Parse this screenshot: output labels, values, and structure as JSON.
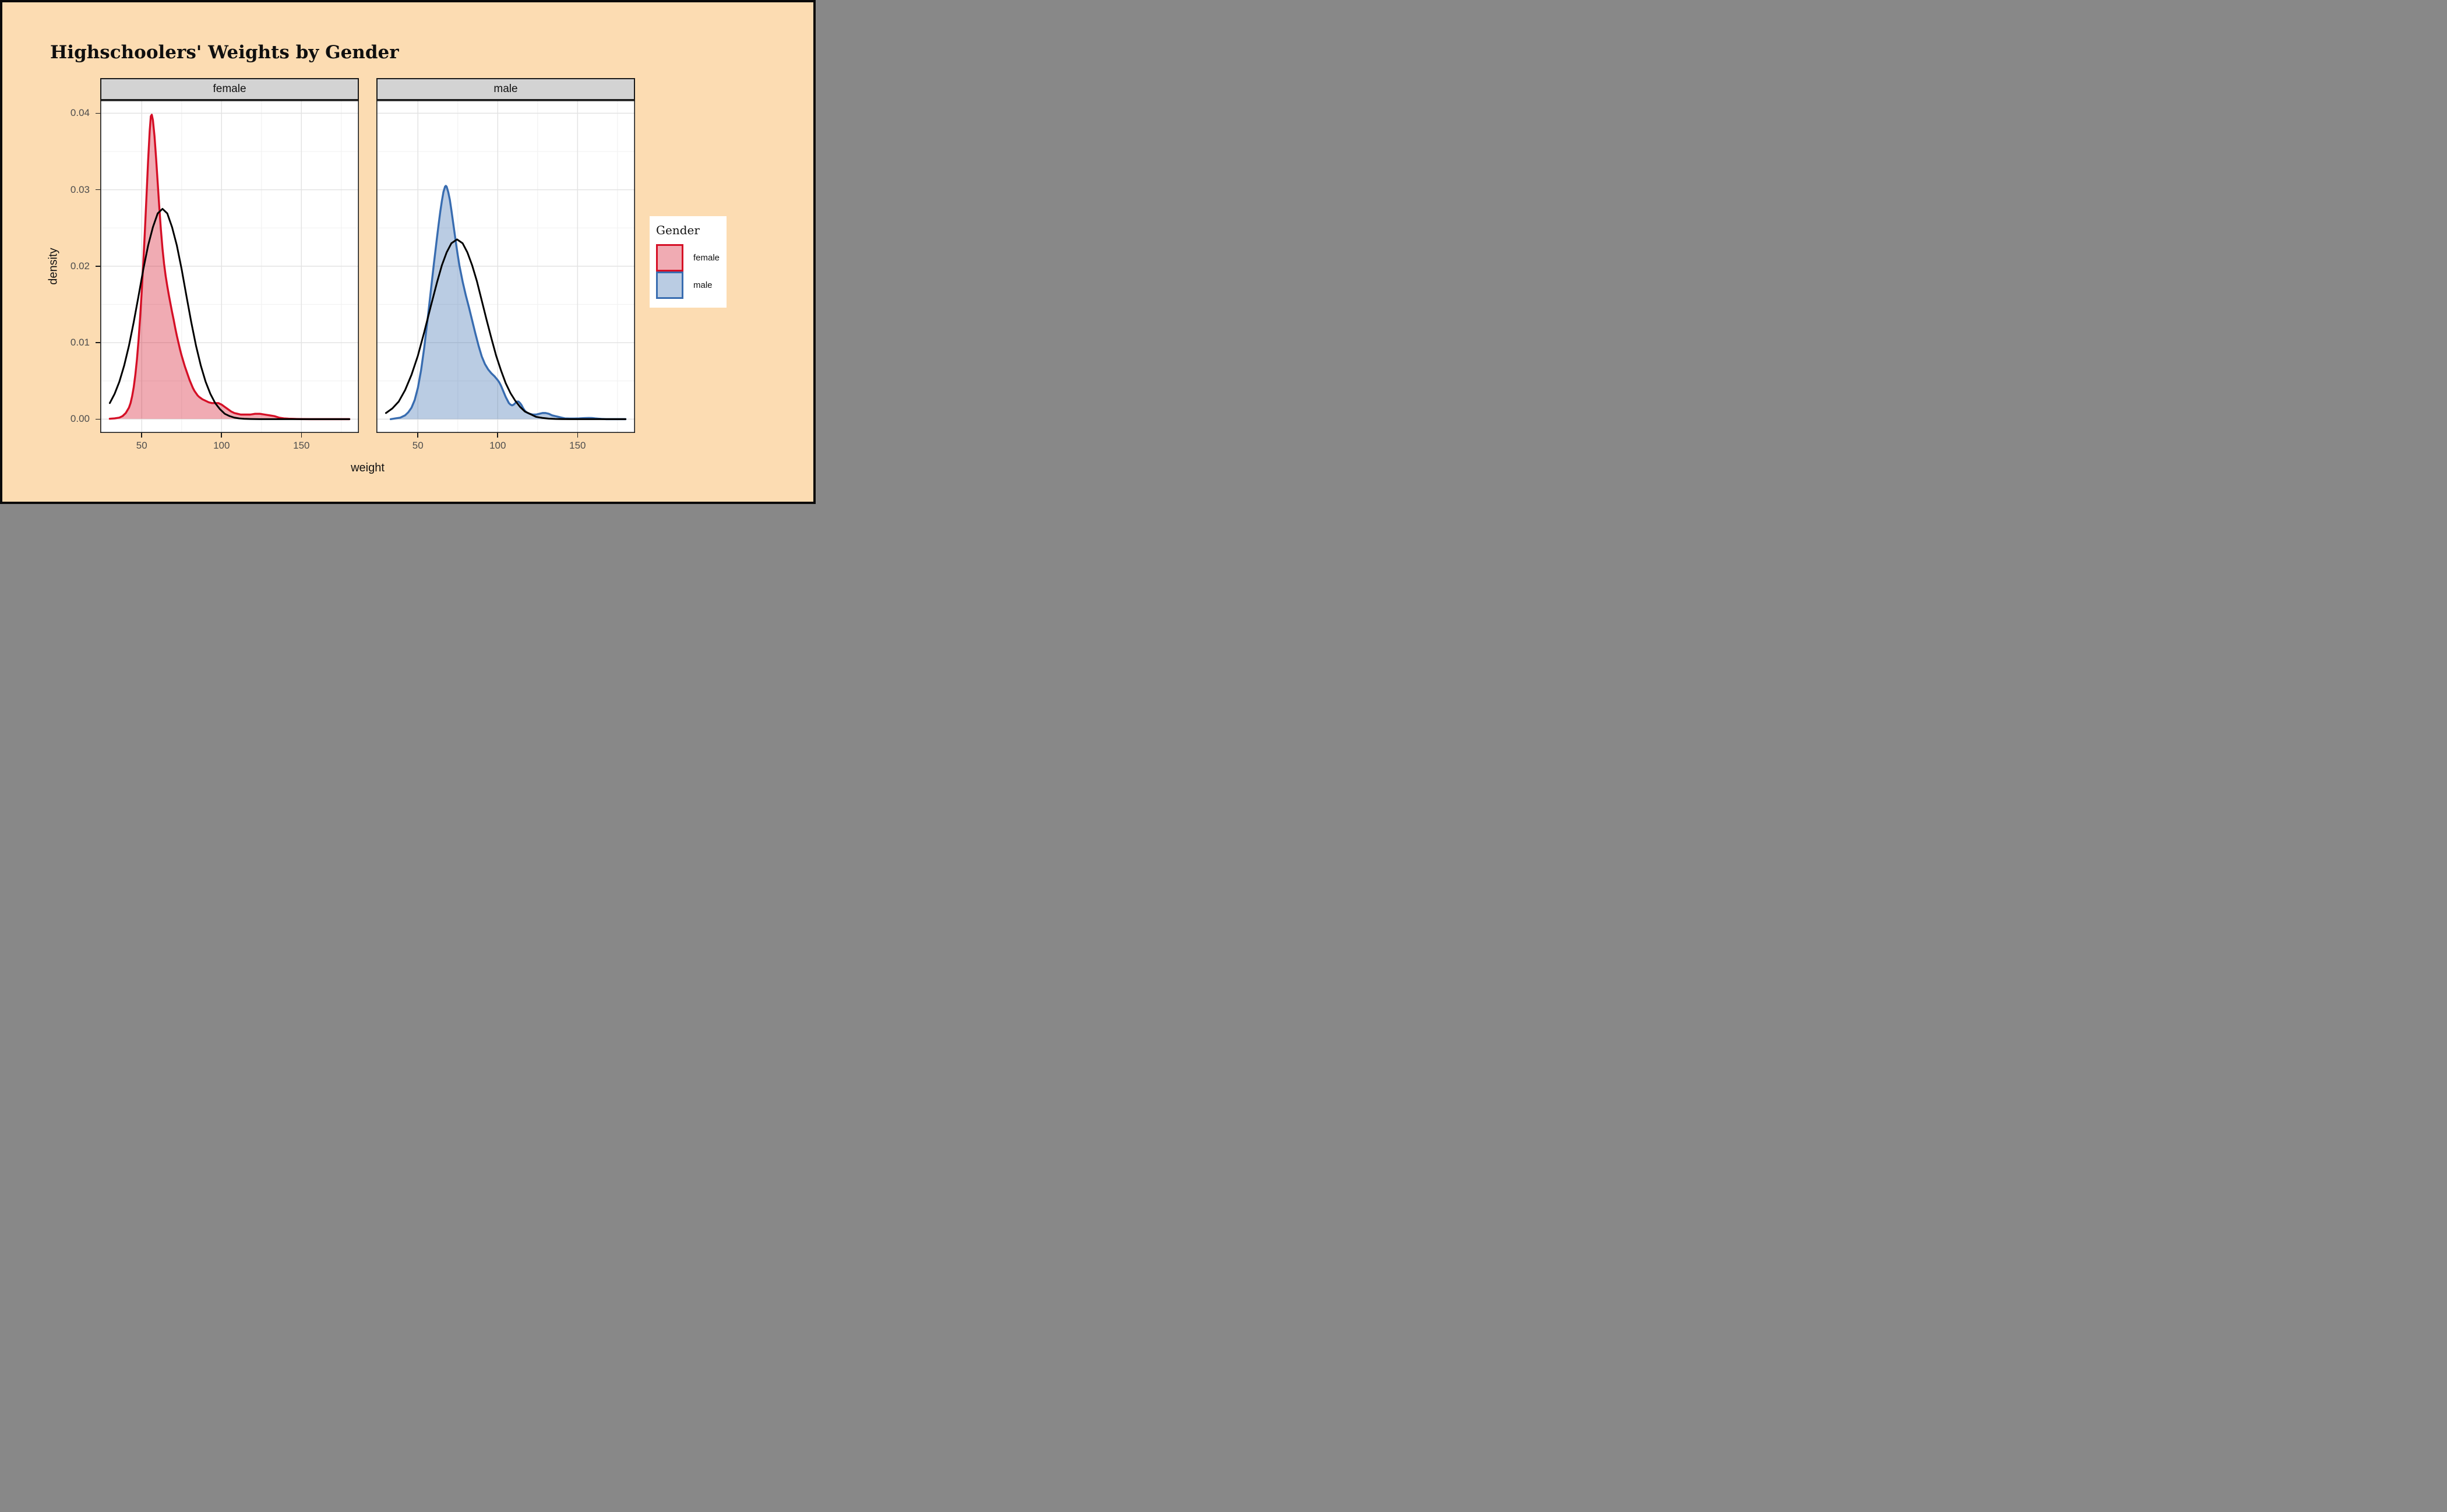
{
  "title": "Highschoolers' Weights by Gender",
  "axes": {
    "x_title": "weight",
    "y_title": "density",
    "x_tick_labels": [
      "50",
      "100",
      "150"
    ],
    "y_tick_labels": [
      "0.00",
      "0.01",
      "0.02",
      "0.03",
      "0.04"
    ]
  },
  "legend": {
    "title": "Gender",
    "items": [
      {
        "label": "female",
        "stroke": "#d50f26",
        "fill": "rgba(213,15,38,0.35)"
      },
      {
        "label": "male",
        "stroke": "#386cb0",
        "fill": "rgba(56,108,176,0.35)"
      }
    ]
  },
  "colors": {
    "page_background": "#fcdcb2",
    "outer_border": "#0a0a0a",
    "panel_background": "#ffffff",
    "panel_border": "#1a1a1a",
    "strip_background": "#d3d3d3",
    "grid_major": "#e3e3e3",
    "grid_minor": "#f2f2f2",
    "tick_text": "#4d4d4d",
    "normal_curve": "#000000",
    "female_stroke": "#d50f26",
    "female_fill": "rgba(213,15,38,0.35)",
    "male_stroke": "#386cb0",
    "male_fill": "rgba(56,108,176,0.35)"
  },
  "chart_data": {
    "type": "area",
    "title": "Highschoolers' Weights by Gender",
    "xlabel": "weight",
    "ylabel": "density",
    "facet_variable": "Gender",
    "x_domain": [
      24,
      186
    ],
    "y_domain": [
      -0.0018,
      0.0417
    ],
    "x_ticks": [
      50,
      100,
      150
    ],
    "x_minor": [
      25,
      75,
      125,
      175
    ],
    "y_ticks": [
      0,
      0.01,
      0.02,
      0.03,
      0.04
    ],
    "y_minor": [
      0.005,
      0.015,
      0.025,
      0.035
    ],
    "grid": true,
    "legend_position": "right",
    "facets": [
      {
        "label": "female",
        "kde": {
          "name": "female weight kernel density",
          "stroke": "#d50f26",
          "fill": "rgba(213,15,38,0.35)",
          "points": [
            [
              30,
              5e-05
            ],
            [
              33,
              0.0001
            ],
            [
              36,
              0.0002
            ],
            [
              38,
              0.0004
            ],
            [
              40,
              0.0008
            ],
            [
              42,
              0.0015
            ],
            [
              43,
              0.0021
            ],
            [
              44,
              0.003
            ],
            [
              45,
              0.0042
            ],
            [
              46,
              0.0058
            ],
            [
              47,
              0.0078
            ],
            [
              48,
              0.0103
            ],
            [
              49,
              0.0133
            ],
            [
              50,
              0.0167
            ],
            [
              51,
              0.0205
            ],
            [
              52,
              0.0247
            ],
            [
              53,
              0.0292
            ],
            [
              54,
              0.0338
            ],
            [
              55,
              0.0377
            ],
            [
              55.7,
              0.0396
            ],
            [
              56.3,
              0.0398
            ],
            [
              57,
              0.0391
            ],
            [
              58,
              0.037
            ],
            [
              59,
              0.0341
            ],
            [
              60,
              0.0309
            ],
            [
              61,
              0.0277
            ],
            [
              62,
              0.0248
            ],
            [
              63,
              0.0223
            ],
            [
              64,
              0.0203
            ],
            [
              65,
              0.0187
            ],
            [
              66,
              0.0174
            ],
            [
              67,
              0.0162
            ],
            [
              68,
              0.0151
            ],
            [
              69,
              0.014
            ],
            [
              70,
              0.013
            ],
            [
              71,
              0.0119
            ],
            [
              72,
              0.0109
            ],
            [
              73,
              0.01
            ],
            [
              74,
              0.0091
            ],
            [
              75,
              0.0083
            ],
            [
              76,
              0.0076
            ],
            [
              77,
              0.0069
            ],
            [
              78,
              0.0063
            ],
            [
              79,
              0.0057
            ],
            [
              80,
              0.0051
            ],
            [
              81,
              0.0046
            ],
            [
              82,
              0.0041
            ],
            [
              83,
              0.0037
            ],
            [
              84,
              0.0034
            ],
            [
              85,
              0.0031
            ],
            [
              86,
              0.0029
            ],
            [
              88,
              0.0026
            ],
            [
              90,
              0.0024
            ],
            [
              92,
              0.0022
            ],
            [
              94,
              0.0021
            ],
            [
              96,
              0.0021
            ],
            [
              98,
              0.0021
            ],
            [
              100,
              0.0019
            ],
            [
              102,
              0.0016
            ],
            [
              104,
              0.0013
            ],
            [
              106,
              0.001
            ],
            [
              108,
              0.0008
            ],
            [
              110,
              0.0007
            ],
            [
              112,
              0.0006
            ],
            [
              115,
              0.0006
            ],
            [
              118,
              0.0006
            ],
            [
              121,
              0.0007
            ],
            [
              124,
              0.0007
            ],
            [
              127,
              0.0006
            ],
            [
              130,
              0.0005
            ],
            [
              133,
              0.0004
            ],
            [
              136,
              0.0002
            ],
            [
              139,
              0.0001
            ],
            [
              142,
              6e-05
            ],
            [
              146,
              3e-05
            ],
            [
              150,
              1e-05
            ],
            [
              156,
              0
            ],
            [
              164,
              0
            ],
            [
              172,
              0
            ],
            [
              180,
              0
            ]
          ]
        },
        "normal": {
          "name": "female fitted normal curve",
          "mean": 63,
          "sd": 14.5,
          "peak_density": 0.0275,
          "stroke": "#000000",
          "points": [
            [
              30,
              0.0021
            ],
            [
              33,
              0.0033
            ],
            [
              36,
              0.0049
            ],
            [
              39,
              0.007
            ],
            [
              42,
              0.0096
            ],
            [
              45,
              0.0127
            ],
            [
              48,
              0.0161
            ],
            [
              51,
              0.0196
            ],
            [
              54,
              0.0227
            ],
            [
              57,
              0.0251
            ],
            [
              60,
              0.0269
            ],
            [
              63,
              0.0275
            ],
            [
              66,
              0.0269
            ],
            [
              69,
              0.0251
            ],
            [
              72,
              0.0227
            ],
            [
              75,
              0.0196
            ],
            [
              78,
              0.0161
            ],
            [
              81,
              0.0127
            ],
            [
              84,
              0.0096
            ],
            [
              87,
              0.007
            ],
            [
              90,
              0.0049
            ],
            [
              93,
              0.0033
            ],
            [
              96,
              0.0021
            ],
            [
              99,
              0.0013
            ],
            [
              102,
              0.0007
            ],
            [
              105,
              0.0004
            ],
            [
              108,
              0.0002
            ],
            [
              111,
              0.0001
            ],
            [
              114,
              5e-05
            ],
            [
              118,
              2e-05
            ],
            [
              124,
              0
            ],
            [
              135,
              0
            ],
            [
              150,
              0
            ],
            [
              165,
              0
            ],
            [
              180,
              0
            ]
          ]
        }
      },
      {
        "label": "male",
        "kde": {
          "name": "male weight kernel density",
          "stroke": "#386cb0",
          "fill": "rgba(56,108,176,0.35)",
          "points": [
            [
              33,
              0
            ],
            [
              36,
              0.0001
            ],
            [
              39,
              0.0002
            ],
            [
              42,
              0.0005
            ],
            [
              44,
              0.0009
            ],
            [
              46,
              0.0015
            ],
            [
              48,
              0.0025
            ],
            [
              50,
              0.0041
            ],
            [
              52,
              0.0064
            ],
            [
              54,
              0.0094
            ],
            [
              56,
              0.0129
            ],
            [
              58,
              0.0166
            ],
            [
              60,
              0.0203
            ],
            [
              62,
              0.0238
            ],
            [
              63,
              0.0255
            ],
            [
              64,
              0.0271
            ],
            [
              65,
              0.0285
            ],
            [
              66,
              0.0297
            ],
            [
              67,
              0.0304
            ],
            [
              67.5,
              0.0305
            ],
            [
              68,
              0.0304
            ],
            [
              69,
              0.0297
            ],
            [
              70,
              0.0287
            ],
            [
              71,
              0.0273
            ],
            [
              72,
              0.0258
            ],
            [
              73,
              0.0243
            ],
            [
              74,
              0.0228
            ],
            [
              75,
              0.0214
            ],
            [
              76,
              0.0201
            ],
            [
              78,
              0.018
            ],
            [
              80,
              0.0162
            ],
            [
              82,
              0.0146
            ],
            [
              84,
              0.0129
            ],
            [
              86,
              0.0112
            ],
            [
              88,
              0.0096
            ],
            [
              90,
              0.0082
            ],
            [
              92,
              0.0072
            ],
            [
              94,
              0.0065
            ],
            [
              96,
              0.006
            ],
            [
              98,
              0.0056
            ],
            [
              100,
              0.0051
            ],
            [
              101,
              0.0048
            ],
            [
              102,
              0.0044
            ],
            [
              103,
              0.0039
            ],
            [
              104,
              0.0034
            ],
            [
              105,
              0.0029
            ],
            [
              106,
              0.0025
            ],
            [
              107,
              0.0021
            ],
            [
              108,
              0.0019
            ],
            [
              109,
              0.0018
            ],
            [
              110,
              0.0019
            ],
            [
              111,
              0.0021
            ],
            [
              112,
              0.0023
            ],
            [
              113,
              0.0023
            ],
            [
              114,
              0.0021
            ],
            [
              115,
              0.0018
            ],
            [
              116,
              0.0014
            ],
            [
              117,
              0.0011
            ],
            [
              118,
              0.0009
            ],
            [
              120,
              0.0007
            ],
            [
              122,
              0.0006
            ],
            [
              124,
              0.0006
            ],
            [
              126,
              0.0007
            ],
            [
              128,
              0.0008
            ],
            [
              130,
              0.0008
            ],
            [
              132,
              0.0007
            ],
            [
              134,
              0.0005
            ],
            [
              136,
              0.0004
            ],
            [
              138,
              0.0003
            ],
            [
              140,
              0.0002
            ],
            [
              142,
              0.0001
            ],
            [
              145,
              8e-05
            ],
            [
              148,
              8e-05
            ],
            [
              151,
              0.0001
            ],
            [
              154,
              0.00014
            ],
            [
              157,
              0.00016
            ],
            [
              159,
              0.00015
            ],
            [
              161,
              0.0001
            ],
            [
              163,
              6e-05
            ],
            [
              165,
              3e-05
            ],
            [
              168,
              0
            ],
            [
              172,
              0
            ],
            [
              176,
              0
            ],
            [
              180,
              0
            ]
          ]
        },
        "normal": {
          "name": "male fitted normal curve",
          "mean": 74.5,
          "sd": 17,
          "peak_density": 0.0235,
          "stroke": "#000000",
          "points": [
            [
              30,
              0.0008
            ],
            [
              34,
              0.0014
            ],
            [
              38,
              0.0023
            ],
            [
              42,
              0.0038
            ],
            [
              46,
              0.0058
            ],
            [
              50,
              0.0083
            ],
            [
              54,
              0.0114
            ],
            [
              58,
              0.0147
            ],
            [
              62,
              0.0179
            ],
            [
              65,
              0.0201
            ],
            [
              68,
              0.0218
            ],
            [
              71,
              0.023
            ],
            [
              74.5,
              0.0235
            ],
            [
              78,
              0.023
            ],
            [
              81,
              0.0218
            ],
            [
              84,
              0.0201
            ],
            [
              87,
              0.018
            ],
            [
              90,
              0.0155
            ],
            [
              93,
              0.013
            ],
            [
              96,
              0.0106
            ],
            [
              99,
              0.0083
            ],
            [
              102,
              0.0064
            ],
            [
              105,
              0.0047
            ],
            [
              108,
              0.0034
            ],
            [
              111,
              0.0024
            ],
            [
              114,
              0.0016
            ],
            [
              117,
              0.001
            ],
            [
              120,
              0.0007
            ],
            [
              124,
              0.0003
            ],
            [
              128,
              0.00016
            ],
            [
              132,
              7e-05
            ],
            [
              136,
              3e-05
            ],
            [
              140,
              1e-05
            ],
            [
              146,
              0
            ],
            [
              155,
              0
            ],
            [
              165,
              0
            ],
            [
              180,
              0
            ]
          ]
        }
      }
    ]
  }
}
